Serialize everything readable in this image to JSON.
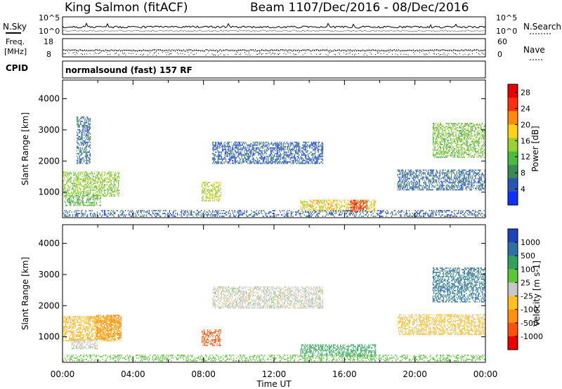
{
  "header": {
    "station": "King Salmon (fitACF)",
    "beam": "Beam 11",
    "dates": "07/Dec/2016 - 08/Dec/2016"
  },
  "strips": {
    "nsky_label": "N.Sky",
    "nsearch_label": "N.Search",
    "noise_ticks": [
      "10^5",
      "10^0"
    ],
    "freq_label_1": "Freq.",
    "freq_label_2": "[MHz]",
    "freq_ticks": [
      "18",
      "8"
    ],
    "nave_label": "Nave",
    "nave_ticks": [
      "60",
      "0"
    ],
    "cpid_label": "CPID",
    "cpid_text": "normalsound (fast) 157 RF"
  },
  "chart_data": [
    {
      "type": "heatmap",
      "title": "",
      "xlabel": "",
      "ylabel": "Slant Range [km]",
      "x_ticks": [
        "00:00",
        "04:00",
        "08:00",
        "12:00",
        "16:00",
        "20:00",
        "00:00"
      ],
      "y_ticks": [
        1000,
        2000,
        3000,
        4000
      ],
      "xlim_hours": [
        0,
        24
      ],
      "ylim_km": [
        180,
        4600
      ],
      "colorbar": {
        "label": "Power [dB]",
        "ticks": [
          4,
          8,
          12,
          16,
          20,
          24,
          28
        ],
        "range": [
          0,
          30
        ],
        "colors": [
          "#1030ff",
          "#2a55b0",
          "#3a8a55",
          "#4bbb40",
          "#9ad030",
          "#ffd21a",
          "#ff8a10",
          "#ff3010",
          "#e80000"
        ]
      },
      "scatter_regions": [
        {
          "t0": 0.0,
          "t1": 3.2,
          "r0": 850,
          "r1": 1650,
          "v": 14
        },
        {
          "t0": 0.1,
          "t1": 2.2,
          "r0": 550,
          "r1": 900,
          "v": 11
        },
        {
          "t0": 0.8,
          "t1": 1.6,
          "r0": 1900,
          "r1": 3400,
          "v": 6
        },
        {
          "t0": 7.9,
          "t1": 9.0,
          "r0": 700,
          "r1": 1300,
          "v": 16
        },
        {
          "t0": 8.5,
          "t1": 14.8,
          "r0": 1900,
          "r1": 2600,
          "v": 5
        },
        {
          "t0": 13.5,
          "t1": 17.8,
          "r0": 350,
          "r1": 750,
          "v": 18
        },
        {
          "t0": 16.3,
          "t1": 17.3,
          "r0": 350,
          "r1": 720,
          "v": 26
        },
        {
          "t0": 19.0,
          "t1": 24.0,
          "r0": 1050,
          "r1": 1700,
          "v": 6
        },
        {
          "t0": 21.0,
          "t1": 24.0,
          "r0": 2100,
          "r1": 3200,
          "v": 13
        },
        {
          "t0": 0.0,
          "t1": 24.0,
          "r0": 200,
          "r1": 400,
          "v": 5
        }
      ]
    },
    {
      "type": "heatmap",
      "title": "",
      "xlabel": "Time UT",
      "ylabel": "Slant Range [km]",
      "x_ticks": [
        "00:00",
        "04:00",
        "08:00",
        "12:00",
        "16:00",
        "20:00",
        "00:00"
      ],
      "y_ticks": [
        1000,
        2000,
        3000,
        4000
      ],
      "xlim_hours": [
        0,
        24
      ],
      "ylim_km": [
        180,
        4600
      ],
      "colorbar": {
        "label": "Velocity [m s-1]",
        "ticks": [
          1000,
          500,
          100,
          25,
          -25,
          -100,
          -500,
          -1000
        ],
        "colors": [
          "#1f44b8",
          "#2f70a0",
          "#31a060",
          "#5cc63a",
          "#c8c8c8",
          "#ffc020",
          "#ff9010",
          "#ff5010",
          "#e80000"
        ]
      },
      "scatter_regions": [
        {
          "t0": 0.0,
          "t1": 3.3,
          "r0": 850,
          "r1": 1650,
          "v": -80
        },
        {
          "t0": 1.9,
          "t1": 3.3,
          "r0": 900,
          "r1": 1700,
          "v": -300
        },
        {
          "t0": 0.5,
          "t1": 2.0,
          "r0": 600,
          "r1": 900,
          "v": 0
        },
        {
          "t0": 7.9,
          "t1": 9.0,
          "r0": 700,
          "r1": 1200,
          "v": -700
        },
        {
          "t0": 8.5,
          "t1": 14.8,
          "r0": 1900,
          "r1": 2600,
          "v": 0
        },
        {
          "t0": 13.5,
          "t1": 17.8,
          "r0": 350,
          "r1": 750,
          "v": 150
        },
        {
          "t0": 19.0,
          "t1": 24.0,
          "r0": 1050,
          "r1": 1700,
          "v": -40
        },
        {
          "t0": 21.0,
          "t1": 24.0,
          "r0": 2100,
          "r1": 3200,
          "v": 700
        },
        {
          "t0": 0.0,
          "t1": 24.0,
          "r0": 200,
          "r1": 400,
          "v": 60
        }
      ]
    }
  ]
}
